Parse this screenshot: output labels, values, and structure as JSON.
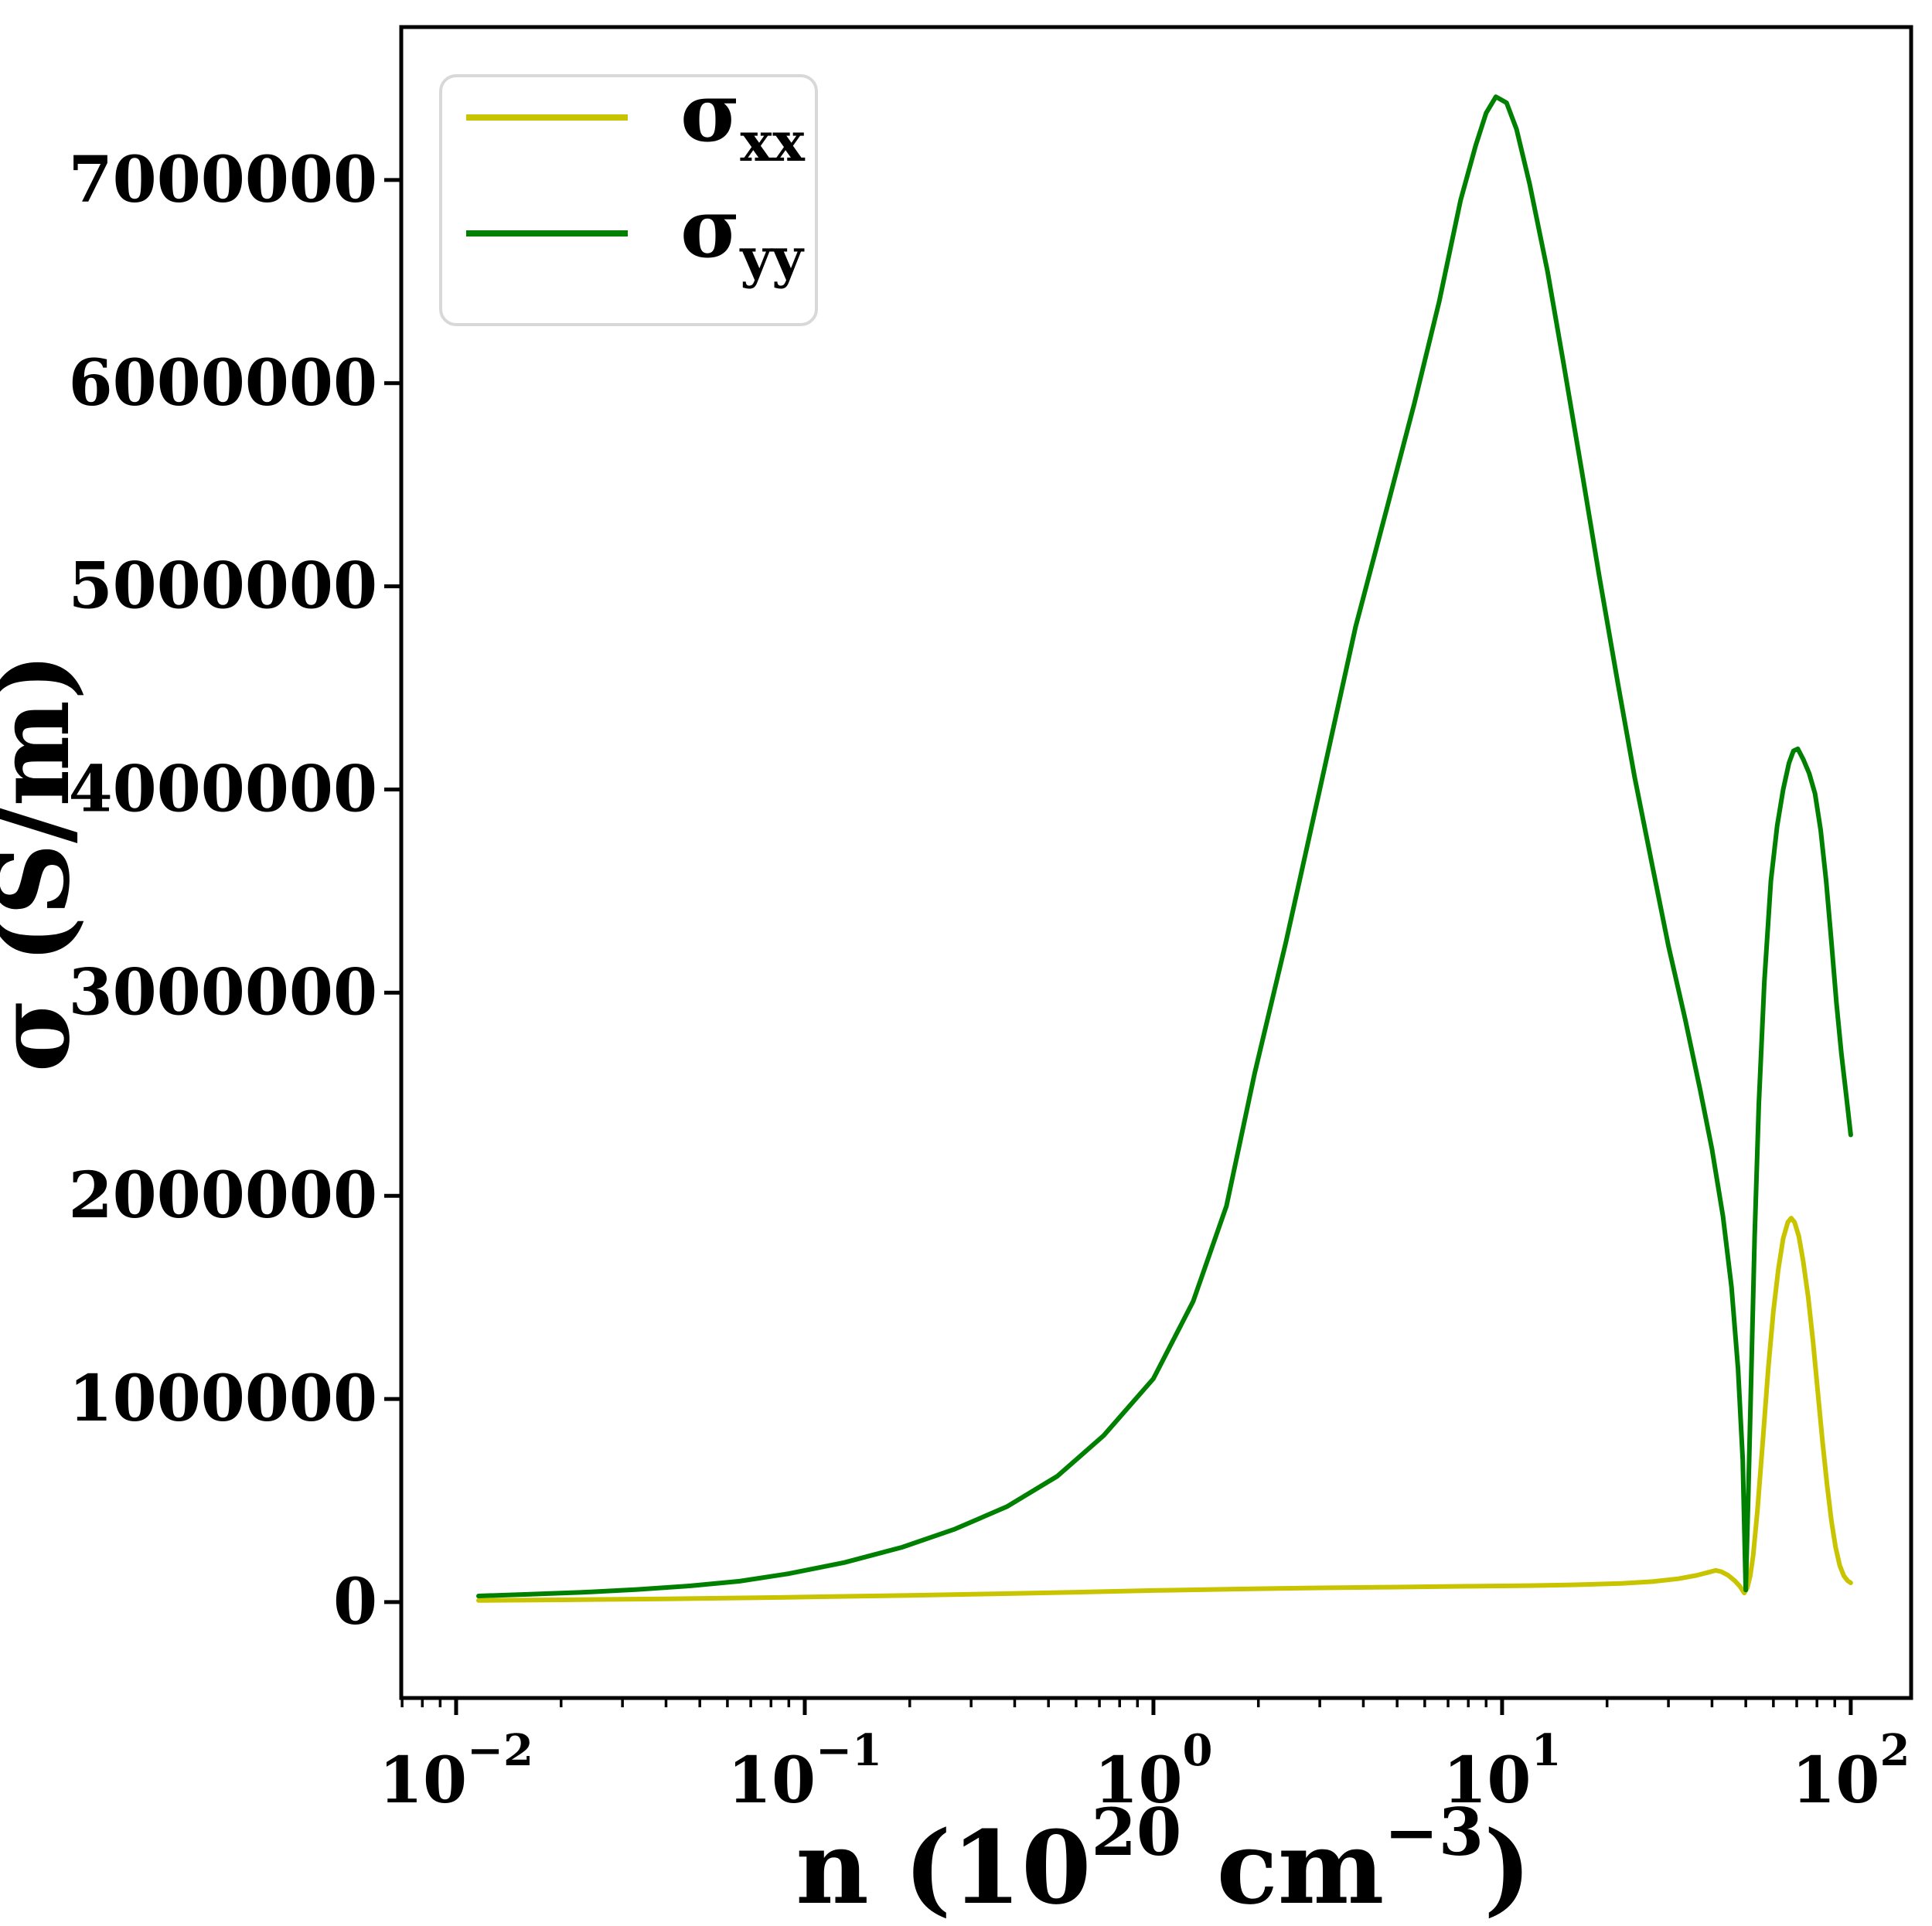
{
  "figure": {
    "background": "#ffffff",
    "spine_color": "#000000",
    "legend": {
      "border_color": "#d8d8d8",
      "fill": "#ffffff"
    }
  },
  "chart_data": {
    "type": "line",
    "title": "",
    "xlabel": "n (10^20 cm^-3)",
    "ylabel": "σ (S/m)",
    "xlabel_parts": [
      {
        "t": "n (10",
        "sup": false
      },
      {
        "t": "20",
        "sup": true
      },
      {
        "t": " cm",
        "sup": false
      },
      {
        "t": "−3",
        "sup": true
      },
      {
        "t": ")",
        "sup": false
      }
    ],
    "x_scale": "log",
    "grid": false,
    "legend_position": "upper left",
    "xlim": [
      0.00696,
      149
    ],
    "ylim": [
      -472000,
      7753000
    ],
    "x_major_ticks": [
      {
        "n": 0.01,
        "base": "10",
        "exp": "−2"
      },
      {
        "n": 0.1,
        "base": "10",
        "exp": "−1"
      },
      {
        "n": 1,
        "base": "10",
        "exp": "0"
      },
      {
        "n": 10,
        "base": "10",
        "exp": "1"
      },
      {
        "n": 100,
        "base": "10",
        "exp": "2"
      }
    ],
    "y_ticks": [
      {
        "v": 0,
        "label": "0"
      },
      {
        "v": 1000000,
        "label": "1000000"
      },
      {
        "v": 2000000,
        "label": "2000000"
      },
      {
        "v": 3000000,
        "label": "3000000"
      },
      {
        "v": 4000000,
        "label": "4000000"
      },
      {
        "v": 5000000,
        "label": "5000000"
      },
      {
        "v": 6000000,
        "label": "6000000"
      },
      {
        "v": 7000000,
        "label": "7000000"
      }
    ],
    "series": [
      {
        "name": "sigma_xx",
        "label_base": "σ",
        "label_sub": "xx",
        "color": "#c9c400",
        "points": [
          [
            0.0116,
            8000
          ],
          [
            0.02,
            11000
          ],
          [
            0.04,
            16000
          ],
          [
            0.07,
            21000
          ],
          [
            0.12,
            27000
          ],
          [
            0.2,
            33000
          ],
          [
            0.35,
            41000
          ],
          [
            0.6,
            49000
          ],
          [
            1.0,
            57000
          ],
          [
            1.7,
            64000
          ],
          [
            3.0,
            70000
          ],
          [
            5.0,
            74000
          ],
          [
            8.0,
            78000
          ],
          [
            12,
            81000
          ],
          [
            17,
            86000
          ],
          [
            22,
            92000
          ],
          [
            27,
            101000
          ],
          [
            32,
            115000
          ],
          [
            36,
            131000
          ],
          [
            39.5,
            149000
          ],
          [
            41,
            156000
          ],
          [
            42.5,
            150000
          ],
          [
            44.5,
            132000
          ],
          [
            46.5,
            105000
          ],
          [
            48,
            80000
          ],
          [
            49.5,
            45000
          ],
          [
            50.5,
            70000
          ],
          [
            51.5,
            130000
          ],
          [
            52.5,
            230000
          ],
          [
            54,
            450000
          ],
          [
            56,
            800000
          ],
          [
            58,
            1150000
          ],
          [
            60,
            1430000
          ],
          [
            62,
            1640000
          ],
          [
            64,
            1790000
          ],
          [
            66,
            1870000
          ],
          [
            67.5,
            1890000
          ],
          [
            69,
            1870000
          ],
          [
            71,
            1800000
          ],
          [
            73,
            1680000
          ],
          [
            75.5,
            1500000
          ],
          [
            78,
            1280000
          ],
          [
            80.5,
            1030000
          ],
          [
            83,
            790000
          ],
          [
            85.5,
            580000
          ],
          [
            88,
            400000
          ],
          [
            90.5,
            270000
          ],
          [
            93,
            180000
          ],
          [
            95.5,
            130000
          ],
          [
            98,
            105000
          ],
          [
            100,
            95000
          ]
        ]
      },
      {
        "name": "sigma_yy",
        "label_base": "σ",
        "label_sub": "yy",
        "color": "#008000",
        "points": [
          [
            0.0116,
            30000
          ],
          [
            0.016,
            38000
          ],
          [
            0.023,
            48000
          ],
          [
            0.033,
            62000
          ],
          [
            0.047,
            80000
          ],
          [
            0.065,
            103000
          ],
          [
            0.09,
            140000
          ],
          [
            0.13,
            195000
          ],
          [
            0.19,
            270000
          ],
          [
            0.27,
            360000
          ],
          [
            0.38,
            470000
          ],
          [
            0.53,
            620000
          ],
          [
            0.72,
            820000
          ],
          [
            1.0,
            1100000
          ],
          [
            1.3,
            1480000
          ],
          [
            1.62,
            1950000
          ],
          [
            1.95,
            2600000
          ],
          [
            2.4,
            3250000
          ],
          [
            3.0,
            4000000
          ],
          [
            3.8,
            4800000
          ],
          [
            4.7,
            5400000
          ],
          [
            5.6,
            5900000
          ],
          [
            6.6,
            6400000
          ],
          [
            7.6,
            6900000
          ],
          [
            8.4,
            7170000
          ],
          [
            9.0,
            7330000
          ],
          [
            9.6,
            7410000
          ],
          [
            10.3,
            7380000
          ],
          [
            11.0,
            7250000
          ],
          [
            12.0,
            6980000
          ],
          [
            13.5,
            6550000
          ],
          [
            15.0,
            6100000
          ],
          [
            17.0,
            5550000
          ],
          [
            19.0,
            5050000
          ],
          [
            21.5,
            4520000
          ],
          [
            24.0,
            4060000
          ],
          [
            27.0,
            3620000
          ],
          [
            30.0,
            3230000
          ],
          [
            33.5,
            2870000
          ],
          [
            37.0,
            2520000
          ],
          [
            40.0,
            2230000
          ],
          [
            43.0,
            1900000
          ],
          [
            45.5,
            1550000
          ],
          [
            47.5,
            1150000
          ],
          [
            49.0,
            700000
          ],
          [
            50.0,
            60000
          ],
          [
            50.8,
            500000
          ],
          [
            51.8,
            1100000
          ],
          [
            53.0,
            1800000
          ],
          [
            54.5,
            2450000
          ],
          [
            56.5,
            3050000
          ],
          [
            59.0,
            3550000
          ],
          [
            61.5,
            3820000
          ],
          [
            64.0,
            4000000
          ],
          [
            66.5,
            4130000
          ],
          [
            68.5,
            4190000
          ],
          [
            70.5,
            4200000
          ],
          [
            73.0,
            4150000
          ],
          [
            76.0,
            4080000
          ],
          [
            79.0,
            3980000
          ],
          [
            82.0,
            3800000
          ],
          [
            85.0,
            3550000
          ],
          [
            88.0,
            3250000
          ],
          [
            91.0,
            2950000
          ],
          [
            94.0,
            2700000
          ],
          [
            97.0,
            2500000
          ],
          [
            100.0,
            2300000
          ]
        ]
      }
    ]
  }
}
